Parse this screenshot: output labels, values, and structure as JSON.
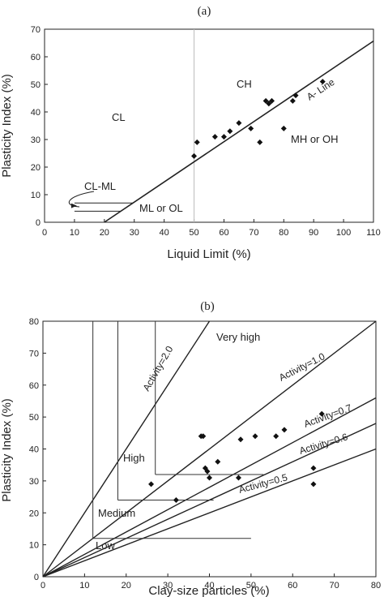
{
  "chart_data": [
    {
      "type": "scatter",
      "panel_label": "(a)",
      "xlabel": "Liquid  Limit  (%)",
      "ylabel": "Plasticity  Index  (%)",
      "xlim": [
        0,
        110
      ],
      "ylim": [
        0,
        70
      ],
      "xticks": [
        0,
        10,
        20,
        30,
        40,
        50,
        60,
        70,
        80,
        90,
        100,
        110
      ],
      "yticks": [
        0,
        10,
        20,
        30,
        40,
        50,
        60,
        70
      ],
      "x_tick_labels": [
        "0",
        "10",
        "20",
        "30",
        "40",
        "50",
        "60",
        "70",
        "80",
        "90",
        "100",
        "110"
      ],
      "y_tick_labels": [
        "0",
        "10",
        "20",
        "30",
        "40",
        "50",
        "60",
        "70"
      ],
      "points": [
        {
          "x": 50,
          "y": 24
        },
        {
          "x": 51,
          "y": 29
        },
        {
          "x": 57,
          "y": 31
        },
        {
          "x": 60,
          "y": 31
        },
        {
          "x": 62,
          "y": 33
        },
        {
          "x": 65,
          "y": 36
        },
        {
          "x": 69,
          "y": 34
        },
        {
          "x": 72,
          "y": 29
        },
        {
          "x": 74,
          "y": 44
        },
        {
          "x": 75,
          "y": 43
        },
        {
          "x": 76,
          "y": 44
        },
        {
          "x": 80,
          "y": 34
        },
        {
          "x": 83,
          "y": 44
        },
        {
          "x": 84,
          "y": 46
        },
        {
          "x": 93,
          "y": 51
        }
      ],
      "a_line": {
        "x": [
          20,
          110
        ],
        "y": [
          0,
          65.7
        ]
      },
      "vertical_line_x": 50,
      "cl_ml_band": {
        "x_from": 10,
        "y_lines": [
          4,
          7
        ]
      },
      "labels": {
        "ch": "CH",
        "cl": "CL",
        "mh_oh": "MH or OH",
        "ml_ol": "ML or OL",
        "cl_ml": "CL-ML",
        "a_line": "A- Line"
      }
    },
    {
      "type": "scatter",
      "panel_label": "(b)",
      "xlabel": "Clay-size  particles  (%)",
      "ylabel": "Plasticity  Index  (%)",
      "xlim": [
        0,
        80
      ],
      "ylim": [
        0,
        80
      ],
      "xticks": [
        0,
        10,
        20,
        30,
        40,
        50,
        60,
        70,
        80
      ],
      "yticks": [
        0,
        10,
        20,
        30,
        40,
        50,
        60,
        70,
        80
      ],
      "x_tick_labels": [
        "0",
        "10",
        "20",
        "30",
        "40",
        "50",
        "60",
        "70",
        "80"
      ],
      "y_tick_labels": [
        "0",
        "10",
        "20",
        "30",
        "40",
        "50",
        "60",
        "70",
        "80"
      ],
      "points": [
        {
          "x": 26,
          "y": 29
        },
        {
          "x": 32,
          "y": 24
        },
        {
          "x": 38,
          "y": 44
        },
        {
          "x": 38.5,
          "y": 44
        },
        {
          "x": 39,
          "y": 34
        },
        {
          "x": 39.5,
          "y": 33
        },
        {
          "x": 40,
          "y": 31
        },
        {
          "x": 42,
          "y": 36
        },
        {
          "x": 47,
          "y": 31
        },
        {
          "x": 47.5,
          "y": 43
        },
        {
          "x": 51,
          "y": 44
        },
        {
          "x": 56,
          "y": 44
        },
        {
          "x": 58,
          "y": 46
        },
        {
          "x": 65,
          "y": 29
        },
        {
          "x": 65,
          "y": 34
        },
        {
          "x": 67,
          "y": 51
        }
      ],
      "activity_lines": [
        {
          "label": "Activity=2.0",
          "slope": 2.0
        },
        {
          "label": "Activity=1.0",
          "slope": 1.0
        },
        {
          "label": "Activity=0.7",
          "slope": 0.7
        },
        {
          "label": "Activity=0.6",
          "slope": 0.6
        },
        {
          "label": "Activity=0.5",
          "slope": 0.5
        }
      ],
      "boundary_lines": [
        {
          "x": [
            12,
            12
          ],
          "y": [
            80,
            12
          ]
        },
        {
          "x": [
            12,
            50
          ],
          "y": [
            12,
            12
          ]
        },
        {
          "x": [
            18,
            18
          ],
          "y": [
            80,
            24
          ]
        },
        {
          "x": [
            18,
            41
          ],
          "y": [
            24,
            24
          ]
        },
        {
          "x": [
            27,
            27
          ],
          "y": [
            80,
            32
          ]
        },
        {
          "x": [
            27,
            53
          ],
          "y": [
            32,
            32
          ]
        }
      ],
      "labels": {
        "very_high": "Very high",
        "high": "High",
        "medium": "Medium",
        "low": "Low"
      }
    }
  ]
}
